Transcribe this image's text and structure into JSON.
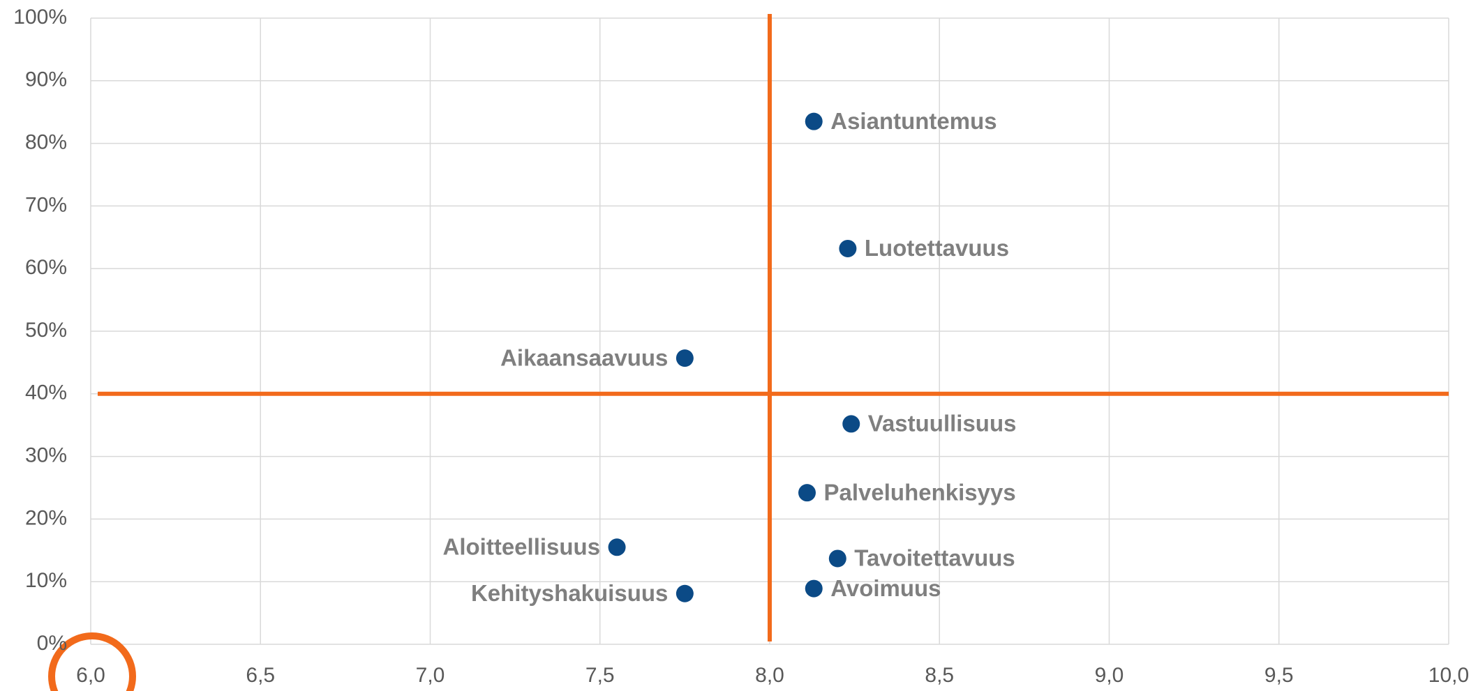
{
  "chart_data": {
    "type": "scatter",
    "xlim": [
      6,
      10
    ],
    "xticks": [
      {
        "value": 6,
        "label": "6,0"
      },
      {
        "value": 6.5,
        "label": "6,5"
      },
      {
        "value": 7,
        "label": "7,0"
      },
      {
        "value": 7.5,
        "label": "7,5"
      },
      {
        "value": 8,
        "label": "8,0"
      },
      {
        "value": 8.5,
        "label": "8,5"
      },
      {
        "value": 9,
        "label": "9,0"
      },
      {
        "value": 9.5,
        "label": "9,5"
      },
      {
        "value": 10,
        "label": "10,0"
      }
    ],
    "ylim": [
      0,
      100
    ],
    "yticks": [
      {
        "value": 0,
        "label": "0%"
      },
      {
        "value": 10,
        "label": "10%"
      },
      {
        "value": 20,
        "label": "20%"
      },
      {
        "value": 30,
        "label": "30%"
      },
      {
        "value": 40,
        "label": "40%"
      },
      {
        "value": 50,
        "label": "50%"
      },
      {
        "value": 60,
        "label": "60%"
      },
      {
        "value": 70,
        "label": "70%"
      },
      {
        "value": 80,
        "label": "80%"
      },
      {
        "value": 90,
        "label": "90%"
      },
      {
        "value": 100,
        "label": "100%"
      }
    ],
    "grid": true,
    "reference_lines": {
      "x": 8,
      "y": 40,
      "color": "#f26a1b"
    },
    "series": [
      {
        "color": "#0b4a86",
        "labels": [
          "Asiantuntemus",
          "Luotettavuus",
          "Aikaansaavuus",
          "Vastuullisuus",
          "Palveluhenkisyys",
          "Aloitteellisuus",
          "Tavoitettavuus",
          "Kehityshakuisuus",
          "Avoimuus"
        ],
        "x": [
          8.13,
          8.23,
          7.75,
          8.24,
          8.11,
          7.55,
          8.2,
          7.75,
          8.13
        ],
        "values": [
          83.5,
          63.2,
          45.7,
          35.2,
          24.2,
          15.5,
          13.7,
          8.1,
          8.9
        ]
      }
    ]
  }
}
